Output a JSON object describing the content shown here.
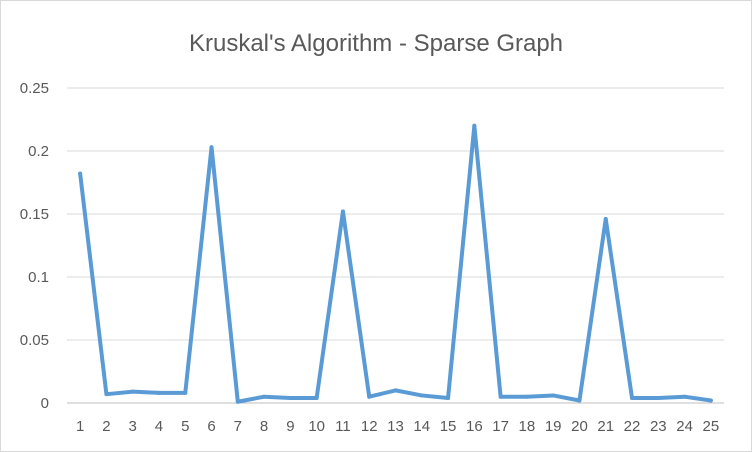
{
  "chart_data": {
    "type": "line",
    "title": "Kruskal's Algorithm - Sparse Graph",
    "xlabel": "",
    "ylabel": "",
    "categories": [
      "1",
      "2",
      "3",
      "4",
      "5",
      "6",
      "7",
      "8",
      "9",
      "10",
      "11",
      "12",
      "13",
      "14",
      "15",
      "16",
      "17",
      "18",
      "19",
      "20",
      "21",
      "22",
      "23",
      "24",
      "25"
    ],
    "series": [
      {
        "color": "#5b9bd5",
        "values": [
          0.182,
          0.007,
          0.009,
          0.008,
          0.008,
          0.203,
          0.001,
          0.005,
          0.004,
          0.004,
          0.152,
          0.005,
          0.01,
          0.006,
          0.004,
          0.22,
          0.005,
          0.005,
          0.006,
          0.002,
          0.146,
          0.004,
          0.004,
          0.005,
          0.002
        ]
      }
    ],
    "ylim": [
      0,
      0.25
    ],
    "yticks": [
      "0",
      "0.05",
      "0.1",
      "0.15",
      "0.2",
      "0.25"
    ],
    "grid": true,
    "legend": "none"
  }
}
